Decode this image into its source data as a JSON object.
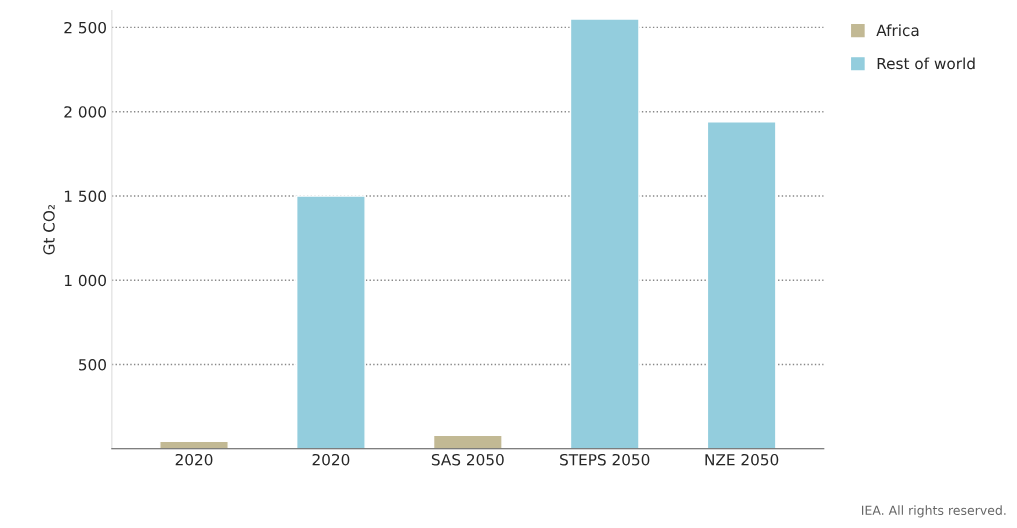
{
  "chart_data": {
    "type": "bar",
    "ylabel": "Gt CO₂",
    "categories": [
      "2020",
      "2020",
      "SAS 2050",
      "STEPS 2050",
      "NZE 2050"
    ],
    "series": [
      {
        "name": "Africa",
        "color": "#c2b994",
        "values": [
          45,
          null,
          80,
          null,
          null
        ]
      },
      {
        "name": "Rest of world",
        "color": "#93cddd",
        "values": [
          null,
          1500,
          null,
          2550,
          1940
        ]
      }
    ],
    "ylim": [
      0,
      2600
    ],
    "yticks": [
      {
        "value": 500,
        "label": "500"
      },
      {
        "value": 1000,
        "label": "1 000"
      },
      {
        "value": 1500,
        "label": "1 500"
      },
      {
        "value": 2000,
        "label": "2 000"
      },
      {
        "value": 2500,
        "label": "2 500"
      }
    ],
    "grid": "y",
    "legend": "top right",
    "annotations": [
      "IEA. All rights reserved."
    ]
  }
}
